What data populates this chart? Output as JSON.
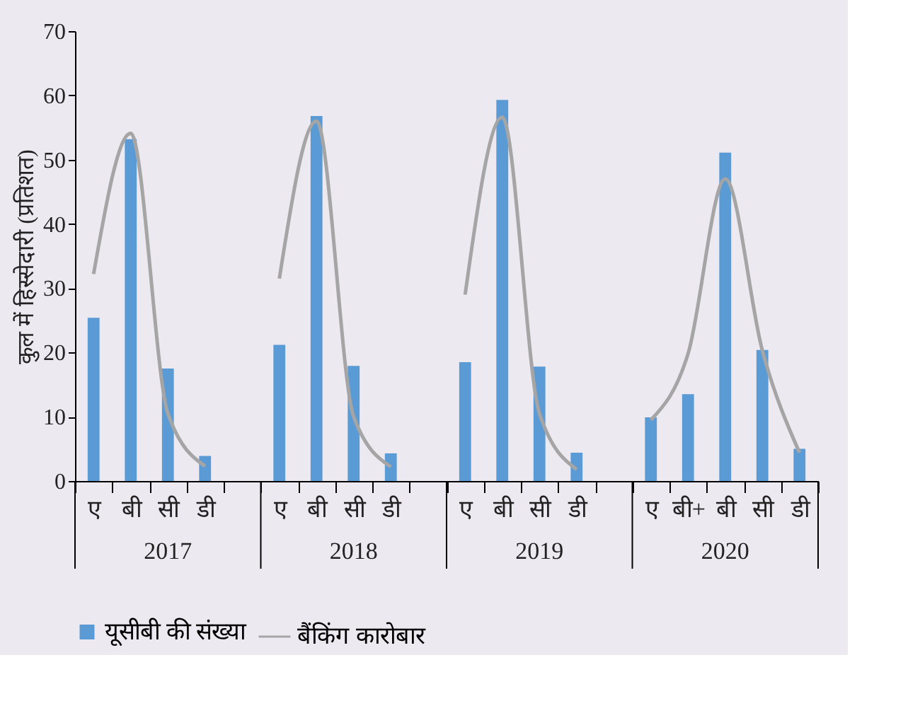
{
  "chart_data": {
    "type": "bar",
    "ylabel": "कुल में हिस्सेदारी (प्रतिशत)",
    "categories": [
      "ए",
      "बी",
      "सी",
      "डी",
      null,
      "ए",
      "बी",
      "सी",
      "डी",
      null,
      "ए",
      "बी",
      "सी",
      "डी",
      null,
      "ए",
      "बी+",
      "बी",
      "सी",
      "डी"
    ],
    "series": [
      {
        "name": "यूसीबी की संख्या",
        "color": "#5b9bd5",
        "values": [
          25.4,
          53.2,
          17.5,
          3.9,
          null,
          21.2,
          56.8,
          17.9,
          4.3,
          null,
          18.5,
          59.3,
          17.8,
          4.4,
          null,
          9.9,
          13.5,
          51.1,
          20.4,
          5.0
        ]
      },
      {
        "name": "बैंकिंग कारोबार",
        "type": "line",
        "color": "#a5a5a5",
        "values": [
          32.2,
          54.1,
          10.5,
          2.3,
          null,
          31.5,
          56.0,
          10.0,
          2.2,
          null,
          29.0,
          56.6,
          10.5,
          1.8,
          null,
          9.5,
          19.8,
          47.0,
          20.3,
          4.4
        ]
      }
    ],
    "annotations": [
      "2017",
      "2018",
      "2019",
      "2020"
    ],
    "ylim": [
      0,
      70
    ],
    "yticks": [
      0,
      10,
      20,
      30,
      40,
      50,
      60,
      70
    ],
    "grid": false,
    "legend": "bottom"
  }
}
